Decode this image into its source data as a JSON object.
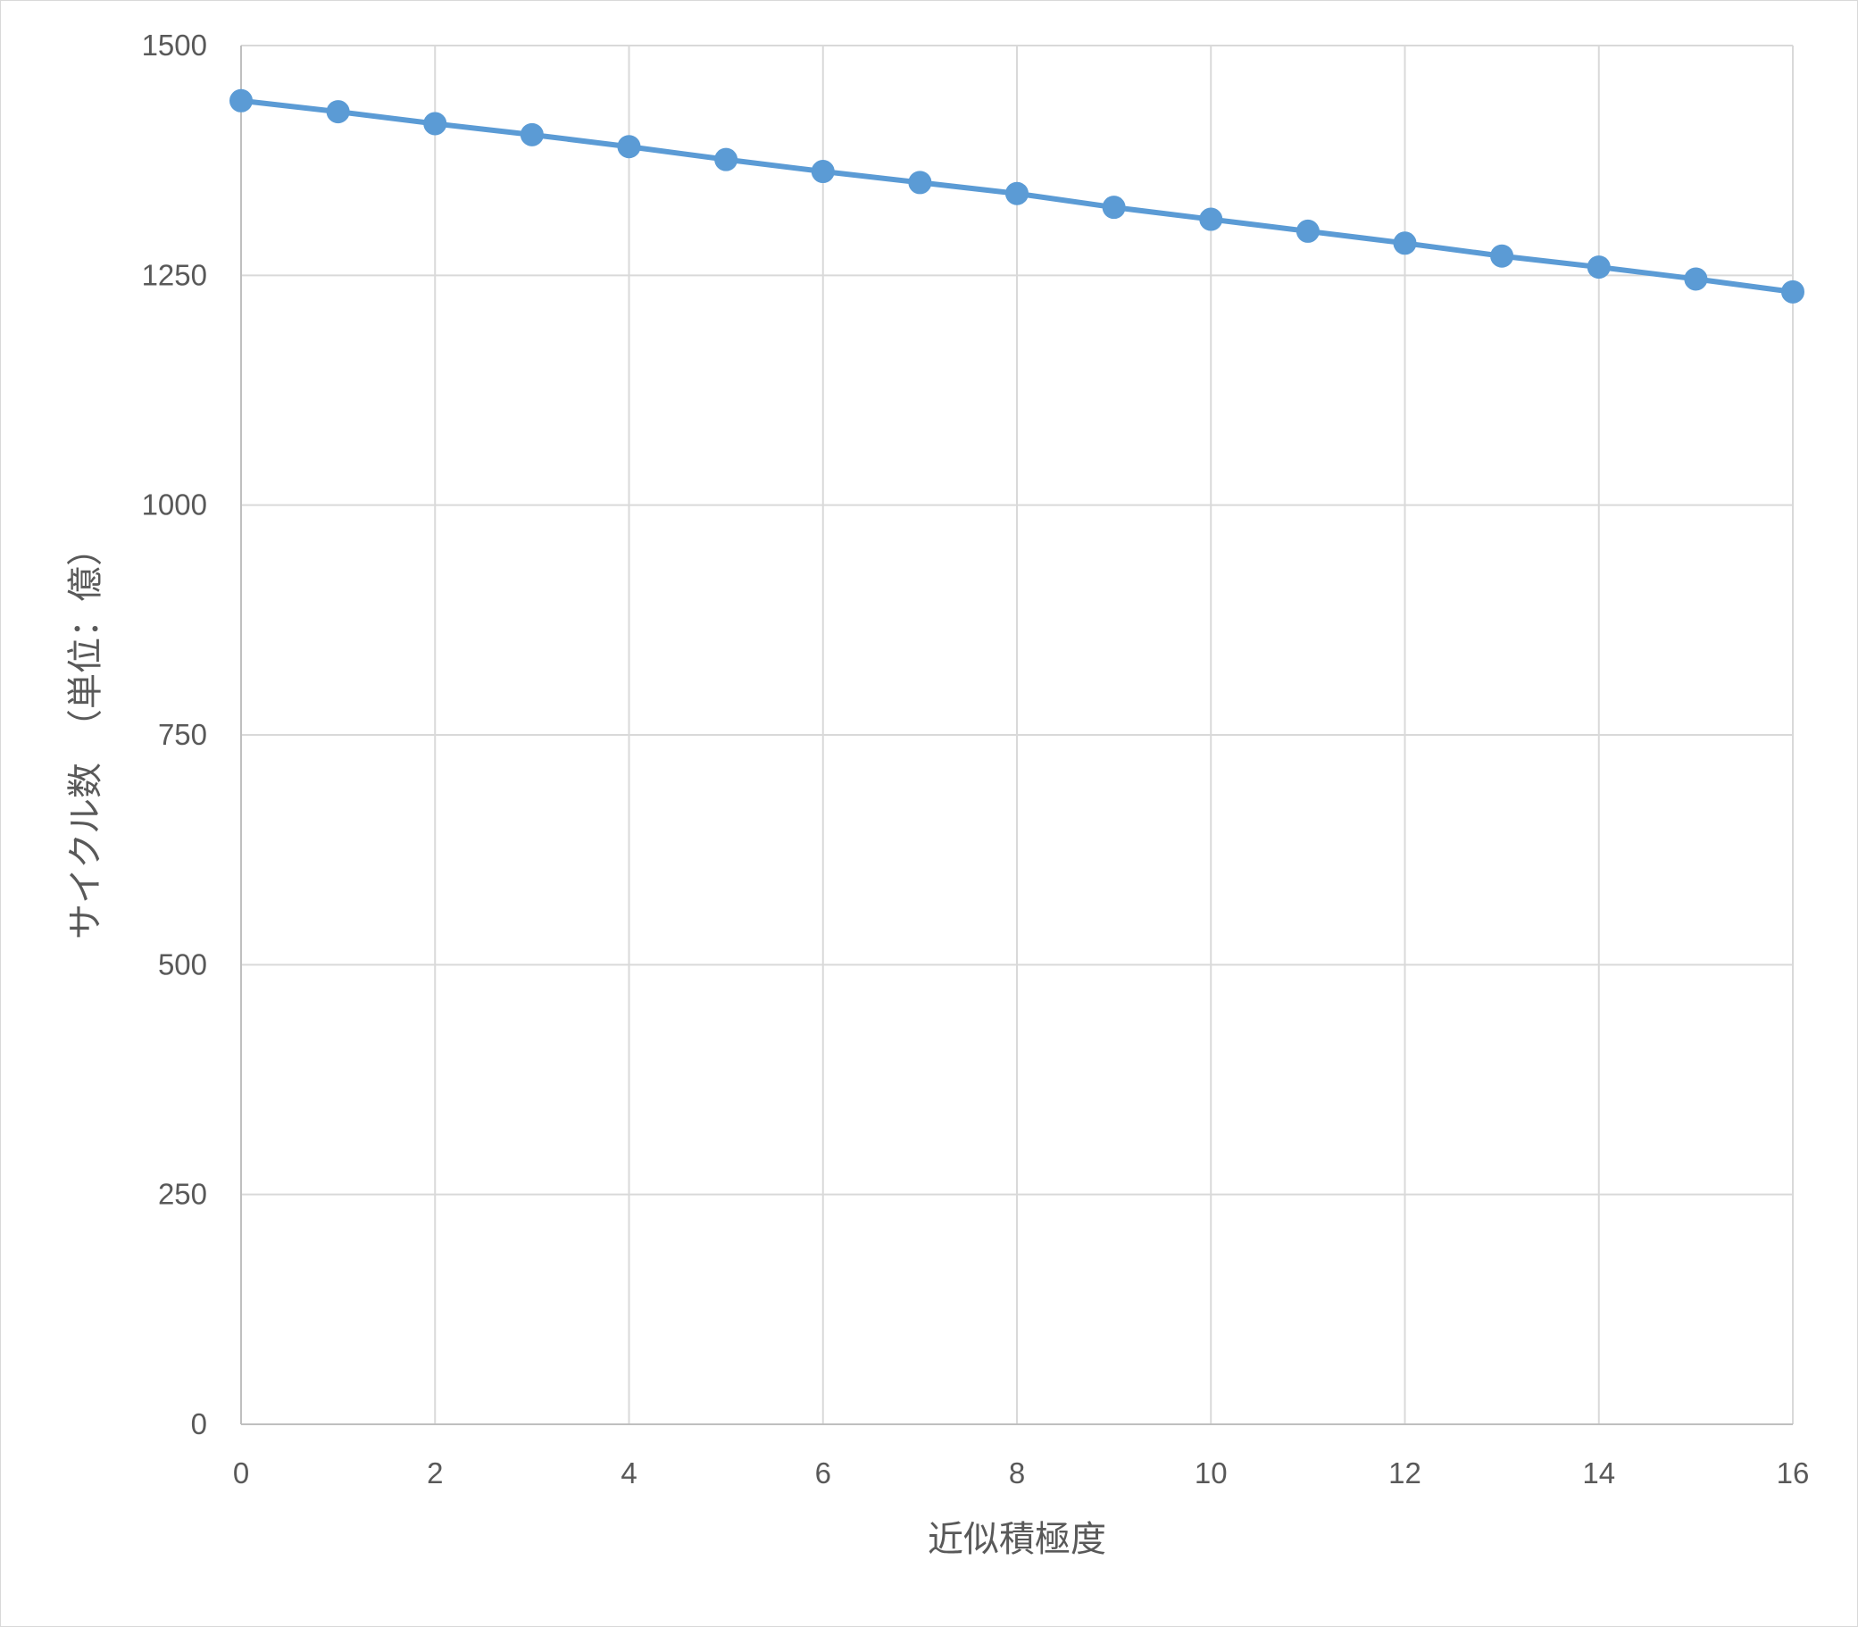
{
  "chart_data": {
    "type": "line",
    "title": "",
    "xlabel": "近似積極度",
    "ylabel": "サイクル数　（単位：億）",
    "xlim": [
      0,
      16
    ],
    "ylim": [
      0,
      1500
    ],
    "x_ticks": [
      "0",
      "2",
      "4",
      "6",
      "8",
      "10",
      "12",
      "14",
      "16"
    ],
    "y_ticks": [
      "0",
      "250",
      "500",
      "750",
      "1000",
      "1250",
      "1500"
    ],
    "grid": true,
    "legend": "none",
    "series": [
      {
        "color": "#5b9bd5",
        "x": [
          0,
          1,
          2,
          3,
          4,
          5,
          6,
          7,
          8,
          9,
          10,
          11,
          12,
          13,
          14,
          15,
          16
        ],
        "values": [
          1440,
          1428,
          1415,
          1403,
          1390,
          1376,
          1363,
          1351,
          1339,
          1324,
          1311,
          1298,
          1285,
          1271,
          1259,
          1246,
          1232
        ]
      }
    ]
  }
}
